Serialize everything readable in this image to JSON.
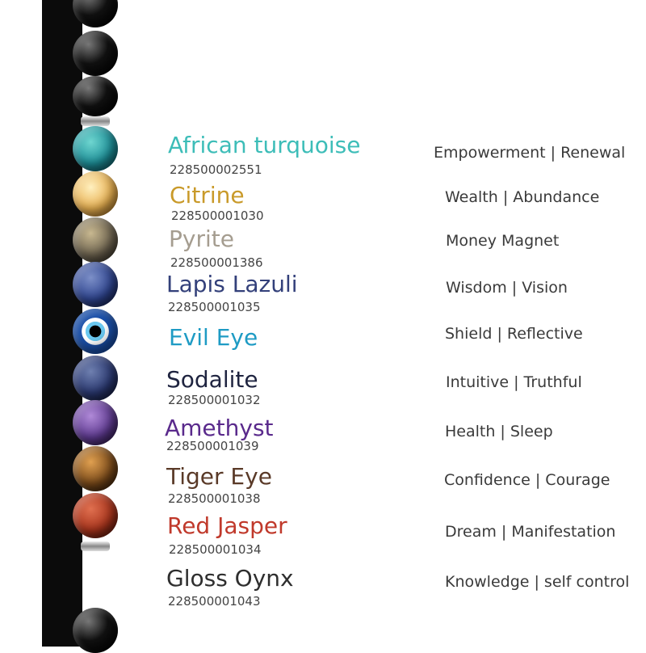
{
  "stones": [
    {
      "name": "African turquoise",
      "code": "228500002551",
      "meaning": "Empowerment | Renewal",
      "color": "#3dbdb8",
      "bead": "radial-gradient(circle at 40% 35%,#6fd6d0,#1d8f98 55%,#0d4d5a)"
    },
    {
      "name": "Citrine",
      "code": "228500001030",
      "meaning": "Wealth | Abundance",
      "color": "#c99a2a",
      "bead": "radial-gradient(circle at 40% 35%,#fff0c0,#e8b050 55%,#a06a20)"
    },
    {
      "name": "Pyrite",
      "code": "228500001386",
      "meaning": "Money Magnet",
      "color": "#a59d90",
      "bead": "radial-gradient(circle at 40% 35%,#c8b890,#6e6450 55%,#2e2a22)"
    },
    {
      "name": "Lapis Lazuli",
      "code": "228500001035",
      "meaning": "Wisdom | Vision",
      "color": "#33407a",
      "bead": "radial-gradient(circle at 40% 35%,#7d90c8,#2f4590 55%,#121c44)"
    },
    {
      "name": "Evil Eye",
      "code": "",
      "meaning": "Shield | Reflective",
      "color": "#1e9bc4",
      "bead": "radial-gradient(circle at 50% 50%,#000 0 18%,#6ac8f0 19% 30%,#fff 31% 42%,#1a4fa8 43%)"
    },
    {
      "name": "Sodalite",
      "code": "228500001032",
      "meaning": "Intuitive | Truthful",
      "color": "#1f2440",
      "bead": "radial-gradient(circle at 40% 35%,#6f80b0,#2a3870 55%,#0e1430)"
    },
    {
      "name": "Amethyst",
      "code": "228500001039",
      "meaning": "Health | Sleep",
      "color": "#5a2a8c",
      "bead": "radial-gradient(circle at 40% 35%,#b08ad8,#5e3a90 55%,#26143e)"
    },
    {
      "name": "Tiger Eye",
      "code": "228500001038",
      "meaning": "Confidence | Courage",
      "color": "#5a3a28",
      "bead": "radial-gradient(circle at 40% 35%,#e0a050,#7a4a1a 55%,#2a1608)"
    },
    {
      "name": "Red Jasper",
      "code": "228500001034",
      "meaning": "Dream | Manifestation",
      "color": "#c0392b",
      "bead": "radial-gradient(circle at 40% 35%,#e07050,#a8341c 55%,#4a1208)"
    },
    {
      "name": "Gloss Oynx",
      "code": "228500001043",
      "meaning": "Knowledge | self control",
      "color": "#2e2e2e",
      "bead": "radial-gradient(circle at 35% 30%,#777,#111 45%,#000)"
    }
  ]
}
